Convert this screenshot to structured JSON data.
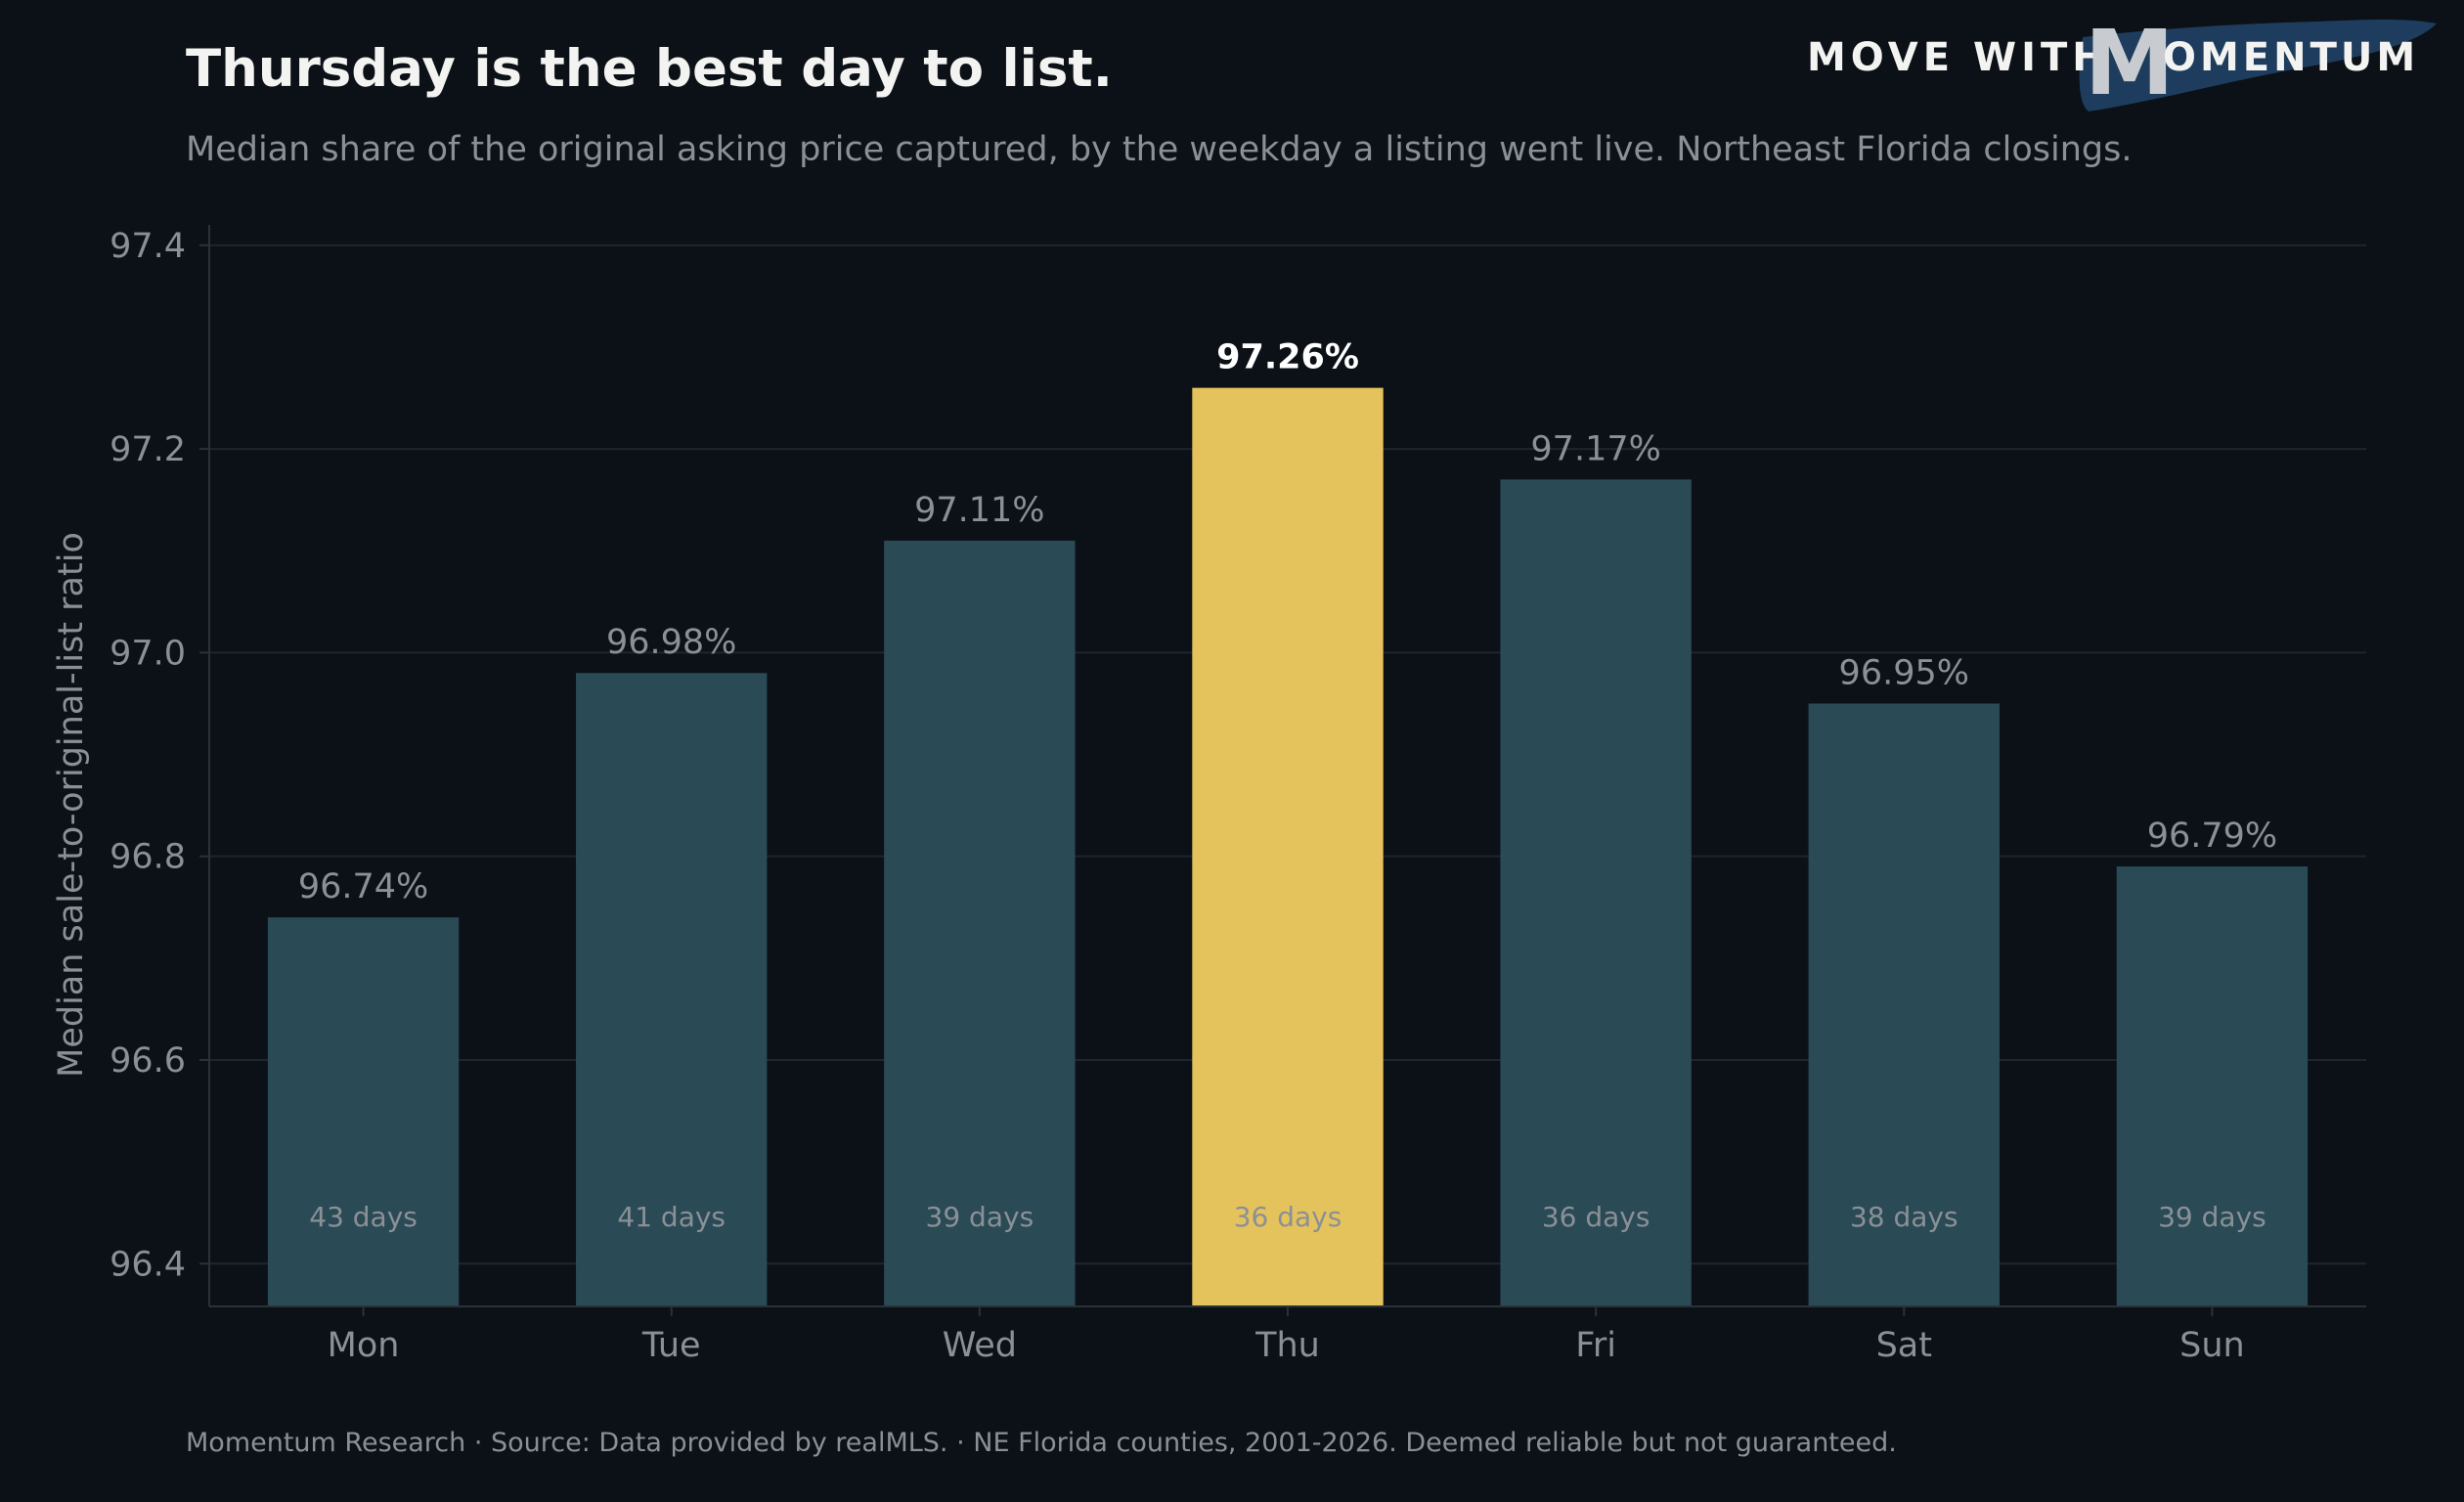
{
  "header": {
    "title": "Thursday is the best day to list.",
    "subtitle": "Median share of the original asking price captured, by the weekday a listing went live. Northeast Florida closings."
  },
  "logo": {
    "text_left": "MOVE WITH",
    "text_letter": "M",
    "text_right": "OMENTUM",
    "brush_color": "#1e3d5e"
  },
  "footer": {
    "text": "Momentum Research  ·  Source: Data provided by realMLS.  ·  NE Florida counties, 2001-2026. Deemed reliable but not guaranteed."
  },
  "chart_data": {
    "type": "bar",
    "categories": [
      "Mon",
      "Tue",
      "Wed",
      "Thu",
      "Fri",
      "Sat",
      "Sun"
    ],
    "values": [
      96.74,
      96.98,
      97.11,
      97.26,
      97.17,
      96.95,
      96.79
    ],
    "value_labels": [
      "96.74%",
      "96.98%",
      "97.11%",
      "97.26%",
      "97.17%",
      "96.95%",
      "96.79%"
    ],
    "inner_labels": [
      "43 days",
      "41 days",
      "39 days",
      "36 days",
      "36 days",
      "38 days",
      "39 days"
    ],
    "highlight_index": 3,
    "ylabel": "Median sale-to-original-list ratio",
    "ylim": [
      96.358,
      97.42
    ],
    "yticks": [
      96.4,
      96.6,
      96.8,
      97.0,
      97.2,
      97.4
    ],
    "ytick_labels": [
      "96.4",
      "96.6",
      "96.8",
      "97.0",
      "97.2",
      "97.4"
    ],
    "grid": true,
    "colors": {
      "background": "#0b1117",
      "bar": "#2a4a56",
      "highlight_bar": "#e5c35c",
      "grid": "#1e262d",
      "axis": "#2a3238",
      "text_muted": "#8a9096",
      "highlight_text": "#ffffff"
    }
  }
}
